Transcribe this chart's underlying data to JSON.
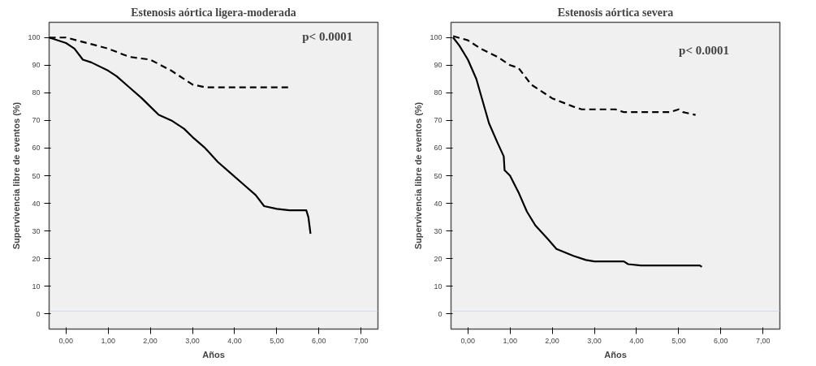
{
  "chart_data": [
    {
      "type": "line",
      "title": "Estenosis aórtica ligera-moderada",
      "xlabel": "Años",
      "ylabel": "Supervivencia libre de eventos (%)",
      "xlim": [
        -0.4,
        7.4
      ],
      "ylim": [
        -5.5,
        105.5
      ],
      "xticks": [
        {
          "value": 0,
          "label": "0,00"
        },
        {
          "value": 1,
          "label": "1,00"
        },
        {
          "value": 2,
          "label": "2,00"
        },
        {
          "value": 3,
          "label": "3,00"
        },
        {
          "value": 4,
          "label": "4,00"
        },
        {
          "value": 5,
          "label": "5,00"
        },
        {
          "value": 6,
          "label": "6,00"
        },
        {
          "value": 7,
          "label": "7,00"
        }
      ],
      "yticks": [
        0,
        10,
        20,
        30,
        40,
        50,
        60,
        70,
        80,
        90,
        100
      ],
      "grid": false,
      "marker": "none",
      "annotations": [
        "p< 0.0001"
      ],
      "ref_lines": [
        {
          "axis": "y",
          "value": 1,
          "color": "#d0d8e8"
        }
      ],
      "series": [
        {
          "color": "#000000",
          "line_style": "solid",
          "x": [
            -0.4,
            0,
            0.2,
            0.4,
            0.6,
            1.0,
            1.2,
            1.5,
            1.8,
            2.0,
            2.2,
            2.5,
            2.8,
            3.0,
            3.3,
            3.6,
            3.9,
            4.2,
            4.5,
            4.7,
            5.0,
            5.3,
            5.7,
            5.75,
            5.8
          ],
          "values": [
            100,
            98,
            96,
            92,
            91,
            88,
            86,
            82,
            78,
            75,
            72,
            70,
            67,
            64,
            60,
            55,
            51,
            47,
            43,
            39,
            38,
            37.5,
            37.5,
            35,
            29
          ]
        },
        {
          "color": "#000000",
          "line_style": "dashed",
          "x": [
            -0.4,
            0,
            0.5,
            1.0,
            1.5,
            2.0,
            2.5,
            3.0,
            3.3,
            5.3
          ],
          "values": [
            100,
            100,
            98,
            96,
            93,
            92,
            88,
            83,
            82,
            82
          ]
        }
      ]
    },
    {
      "type": "line",
      "title": "Estenosis aórtica severa",
      "xlabel": "Años",
      "ylabel": "Supervivencia libre de eventos (%)",
      "xlim": [
        -0.4,
        7.4
      ],
      "ylim": [
        -5.5,
        105.5
      ],
      "xticks": [
        {
          "value": 0,
          "label": "0,00"
        },
        {
          "value": 1,
          "label": "1,00"
        },
        {
          "value": 2,
          "label": "2,00"
        },
        {
          "value": 3,
          "label": "3,00"
        },
        {
          "value": 4,
          "label": "4,00"
        },
        {
          "value": 5,
          "label": "5,00"
        },
        {
          "value": 6,
          "label": "6,00"
        },
        {
          "value": 7,
          "label": "7,00"
        }
      ],
      "yticks": [
        0,
        10,
        20,
        30,
        40,
        50,
        60,
        70,
        80,
        90,
        100
      ],
      "grid": false,
      "marker": "none",
      "annotations": [
        "p< 0.0001"
      ],
      "ref_lines": [
        {
          "axis": "y",
          "value": 1,
          "color": "#d0d8e8"
        }
      ],
      "series": [
        {
          "color": "#000000",
          "line_style": "solid",
          "x": [
            -0.35,
            -0.2,
            0,
            0.2,
            0.35,
            0.5,
            0.7,
            0.85,
            0.87,
            1.0,
            1.2,
            1.4,
            1.6,
            1.9,
            2.1,
            2.5,
            2.8,
            3.0,
            3.7,
            3.8,
            4.1,
            5.5,
            5.55
          ],
          "values": [
            100,
            97,
            92,
            85,
            77,
            69,
            62,
            57,
            52,
            50,
            44,
            37,
            32,
            27,
            23.5,
            21,
            19.5,
            19,
            19,
            18,
            17.5,
            17.5,
            17
          ]
        },
        {
          "color": "#000000",
          "line_style": "dashed",
          "x": [
            -0.35,
            0,
            0.3,
            0.7,
            1.0,
            1.2,
            1.5,
            2.0,
            2.5,
            2.7,
            3.5,
            3.7,
            4.8,
            5.0,
            5.1,
            5.4
          ],
          "values": [
            100.5,
            99,
            96,
            93,
            90,
            89,
            83,
            78,
            75,
            74,
            74,
            73,
            73,
            74,
            73,
            72
          ]
        }
      ]
    }
  ]
}
